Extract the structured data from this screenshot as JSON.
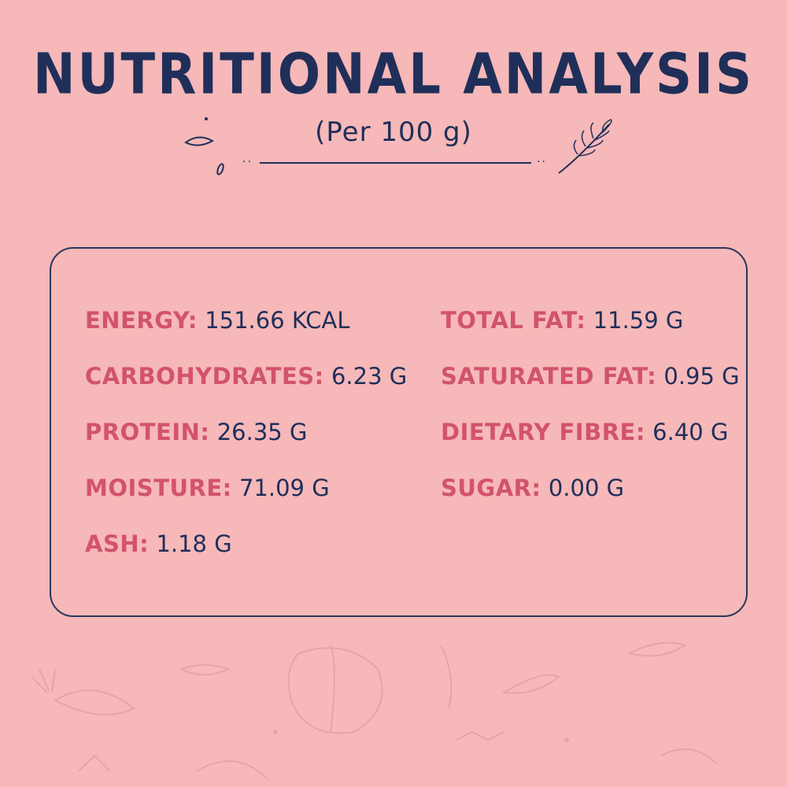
{
  "header": {
    "title": "NUTRITIONAL ANALYSIS",
    "subtitle": "(Per 100 g)"
  },
  "nutrients": {
    "left": [
      {
        "label": "ENERGY:",
        "value": "151.66 KCAL"
      },
      {
        "label": "CARBOHYDRATES:",
        "value": "6.23 G"
      },
      {
        "label": "PROTEIN:",
        "value": "26.35 G"
      },
      {
        "label": "MOISTURE:",
        "value": "71.09 G"
      },
      {
        "label": "ASH:",
        "value": "1.18 G"
      }
    ],
    "right": [
      {
        "label": "TOTAL FAT:",
        "value": "11.59 G"
      },
      {
        "label": "SATURATED FAT:",
        "value": "0.95 G"
      },
      {
        "label": "DIETARY FIBRE:",
        "value": "6.40 G"
      },
      {
        "label": "SUGAR:",
        "value": "0.00 G"
      }
    ]
  },
  "colors": {
    "background": "#f6b8b8",
    "navy": "#1f2f5a",
    "label_pink": "#d2536c"
  },
  "icons": [
    "leaf-icon",
    "herb-sprig-icon",
    "vegetable-doodle-icon"
  ]
}
